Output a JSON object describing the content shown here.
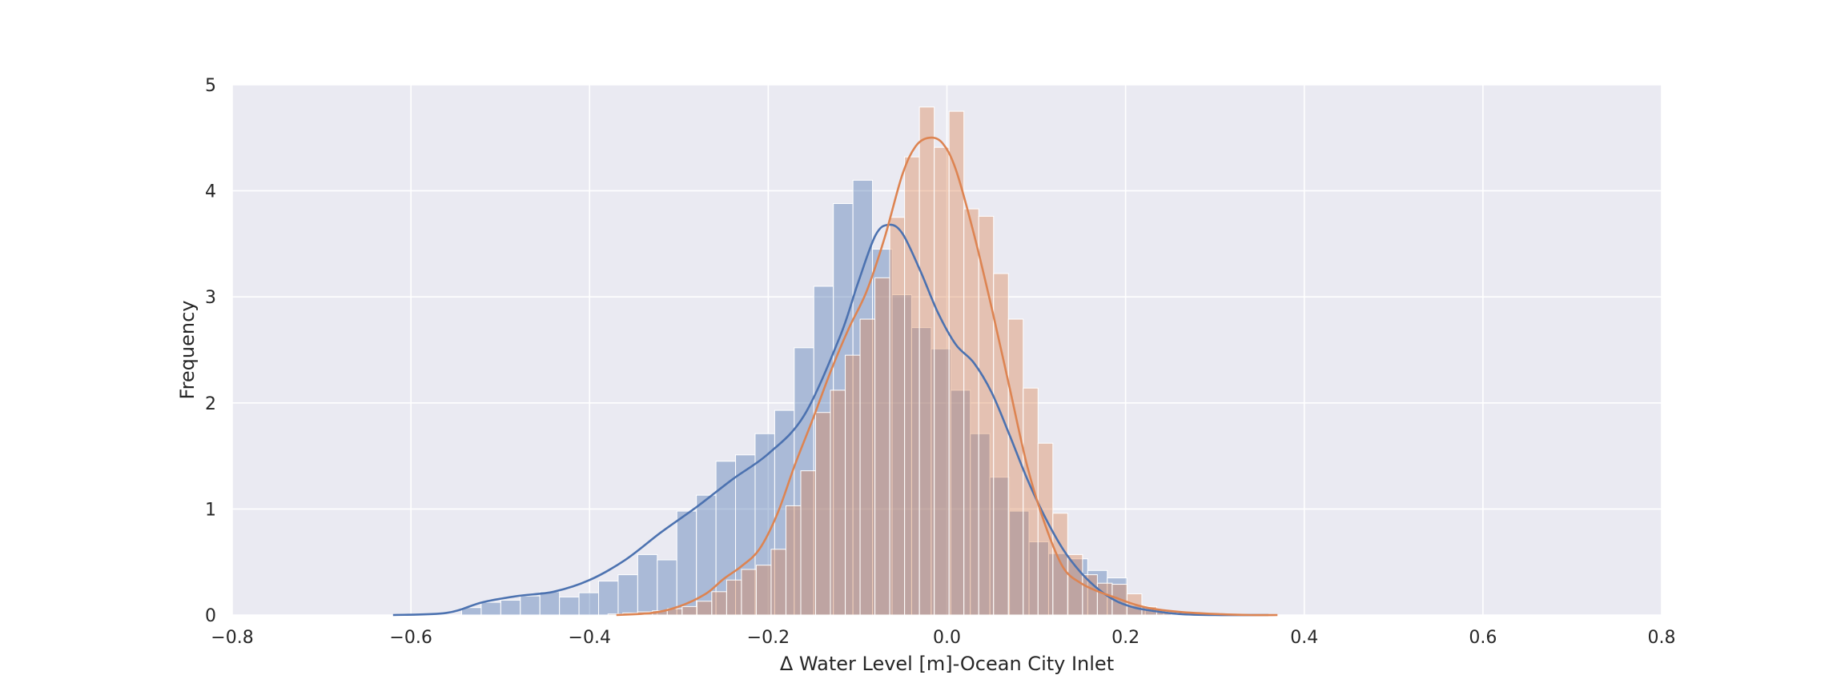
{
  "chart_data": {
    "type": "histogram",
    "title": "",
    "xlabel": "Δ Water Level [m]-Ocean City Inlet",
    "ylabel": "Frequency",
    "xlim": [
      -0.8,
      0.8
    ],
    "ylim": [
      0,
      5
    ],
    "xticks": [
      -0.8,
      -0.6,
      -0.4,
      -0.2,
      0.0,
      0.2,
      0.4,
      0.6,
      0.8
    ],
    "xtick_labels": [
      "−0.8",
      "−0.6",
      "−0.4",
      "−0.2",
      "0.0",
      "0.2",
      "0.4",
      "0.6",
      "0.8"
    ],
    "yticks": [
      0,
      1,
      2,
      3,
      4,
      5
    ],
    "ytick_labels": [
      "0",
      "1",
      "2",
      "3",
      "4",
      "5"
    ],
    "grid": true,
    "legend": "none",
    "series": [
      {
        "color": "#4c72b0",
        "bin_edges": [
          -0.5432,
          -0.5213,
          -0.4994,
          -0.4775,
          -0.4556,
          -0.4337,
          -0.4118,
          -0.3899,
          -0.368,
          -0.3461,
          -0.3242,
          -0.3023,
          -0.2804,
          -0.2585,
          -0.2366,
          -0.2147,
          -0.1928,
          -0.1709,
          -0.149,
          -0.1271,
          -0.1052,
          -0.0833,
          -0.0614,
          -0.0395,
          -0.0176,
          0.0043,
          0.0262,
          0.0481,
          0.07,
          0.0919,
          0.1138,
          0.1357,
          0.1576,
          0.1795,
          0.2014,
          0.222,
          0.2426,
          0.2632
        ],
        "values": [
          0.07,
          0.12,
          0.14,
          0.18,
          0.22,
          0.17,
          0.21,
          0.32,
          0.38,
          0.57,
          0.52,
          0.98,
          1.13,
          1.45,
          1.51,
          1.71,
          1.93,
          2.52,
          3.1,
          3.88,
          4.1,
          3.45,
          3.02,
          2.71,
          2.51,
          2.12,
          1.71,
          1.3,
          0.98,
          0.69,
          0.58,
          0.53,
          0.42,
          0.35,
          0.09,
          0.05,
          0.02
        ],
        "kde": {
          "x": [
            -0.62,
            -0.56,
            -0.52,
            -0.48,
            -0.44,
            -0.4,
            -0.36,
            -0.32,
            -0.28,
            -0.24,
            -0.2,
            -0.16,
            -0.12,
            -0.1,
            -0.08,
            -0.065,
            -0.05,
            -0.03,
            -0.01,
            0.01,
            0.03,
            0.05,
            0.07,
            0.09,
            0.11,
            0.13,
            0.15,
            0.17,
            0.19,
            0.21,
            0.23,
            0.26,
            0.3,
            0.36
          ],
          "y": [
            0.0,
            0.02,
            0.12,
            0.18,
            0.22,
            0.33,
            0.52,
            0.78,
            1.02,
            1.28,
            1.52,
            1.88,
            2.62,
            3.12,
            3.58,
            3.68,
            3.6,
            3.25,
            2.85,
            2.55,
            2.38,
            2.1,
            1.7,
            1.28,
            0.92,
            0.62,
            0.4,
            0.24,
            0.13,
            0.07,
            0.04,
            0.01,
            0.0,
            0.0
          ]
        }
      },
      {
        "color": "#dd8452",
        "bin_edges": [
          -0.3794,
          -0.3628,
          -0.3462,
          -0.3296,
          -0.313,
          -0.2964,
          -0.2798,
          -0.2632,
          -0.2466,
          -0.23,
          -0.2134,
          -0.1968,
          -0.1802,
          -0.1636,
          -0.147,
          -0.1304,
          -0.1138,
          -0.0972,
          -0.0806,
          -0.064,
          -0.0474,
          -0.0308,
          -0.0142,
          0.0024,
          0.019,
          0.0356,
          0.0522,
          0.0688,
          0.0854,
          0.102,
          0.1186,
          0.1352,
          0.1518,
          0.1684,
          0.185,
          0.2016,
          0.2182,
          0.2348,
          0.2514,
          0.268,
          0.2846
        ],
        "values": [
          0.01,
          0.02,
          0.03,
          0.04,
          0.06,
          0.08,
          0.13,
          0.22,
          0.33,
          0.43,
          0.47,
          0.62,
          1.03,
          1.36,
          1.91,
          2.12,
          2.45,
          2.79,
          3.18,
          3.75,
          4.32,
          4.79,
          4.41,
          4.75,
          3.83,
          3.76,
          3.22,
          2.79,
          2.14,
          1.62,
          0.96,
          0.57,
          0.38,
          0.3,
          0.29,
          0.2,
          0.08,
          0.03,
          0.02,
          0.01
        ],
        "kde": {
          "x": [
            -0.37,
            -0.33,
            -0.3,
            -0.27,
            -0.25,
            -0.23,
            -0.21,
            -0.19,
            -0.17,
            -0.15,
            -0.13,
            -0.11,
            -0.09,
            -0.07,
            -0.05,
            -0.035,
            -0.02,
            -0.005,
            0.01,
            0.03,
            0.05,
            0.07,
            0.09,
            0.11,
            0.13,
            0.15,
            0.17,
            0.19,
            0.21,
            0.23,
            0.26,
            0.3,
            0.34,
            0.37
          ],
          "y": [
            0.0,
            0.02,
            0.08,
            0.2,
            0.34,
            0.46,
            0.62,
            0.95,
            1.42,
            1.85,
            2.3,
            2.7,
            3.05,
            3.55,
            4.15,
            4.42,
            4.5,
            4.45,
            4.2,
            3.6,
            2.9,
            2.15,
            1.4,
            0.85,
            0.45,
            0.3,
            0.22,
            0.16,
            0.1,
            0.06,
            0.03,
            0.01,
            0.0,
            0.0
          ]
        }
      }
    ]
  }
}
